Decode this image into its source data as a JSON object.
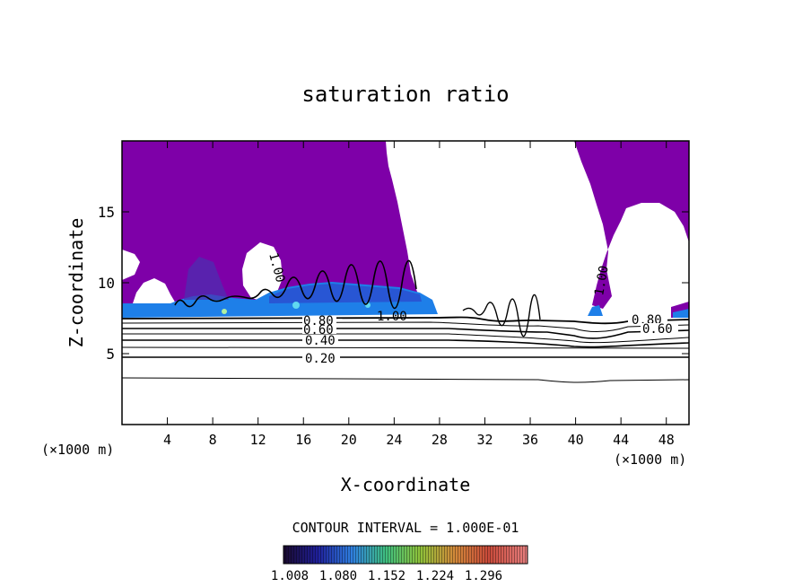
{
  "chart_data": {
    "type": "heatmap",
    "title": "saturation ratio",
    "xlabel": "X-coordinate",
    "ylabel": "Z-coordinate",
    "x_unit": "(×1000 m)",
    "x_unit_right": "(×1000 m)",
    "xlim": [
      0,
      50
    ],
    "ylim": [
      0,
      20
    ],
    "x_ticks": [
      4,
      8,
      12,
      16,
      20,
      24,
      28,
      32,
      36,
      40,
      44,
      48
    ],
    "y_ticks": [
      5,
      10,
      15
    ],
    "grid": false,
    "contour_interval_text": "CONTOUR INTERVAL = 1.000E-01",
    "colorbar": {
      "labels": [
        "1.008",
        "1.080",
        "1.152",
        "1.224",
        "1.296"
      ],
      "colors": [
        "#1a0a2e",
        "#1f1f9a",
        "#2f7fe0",
        "#3fbf7f",
        "#8fc23a",
        "#d28a3a",
        "#c94a3a",
        "#e88080"
      ]
    },
    "fill_colors": {
      "saturated_region": "#7e00a8",
      "boundary_layer": "#1e7fe8",
      "bright_spot": "#60d8f0"
    },
    "contour_labels": [
      {
        "text": "1.00",
        "x": 22.5,
        "z": 7.7
      },
      {
        "text": "1.00",
        "x": 13.8,
        "z": 11.3
      },
      {
        "text": "1.00",
        "x": 42.5,
        "z": 10.0
      },
      {
        "text": "0.80",
        "x": 17.6,
        "z": 7.2
      },
      {
        "text": "0.60",
        "x": 17.6,
        "z": 6.6
      },
      {
        "text": "0.40",
        "x": 17.6,
        "z": 5.9
      },
      {
        "text": "0.20",
        "x": 17.6,
        "z": 4.6
      },
      {
        "text": "0.80",
        "x": 46.1,
        "z": 7.3
      },
      {
        "text": "0.60",
        "x": 47.0,
        "z": 6.5
      }
    ],
    "contour_levels": [
      0.2,
      0.4,
      0.6,
      0.8,
      1.0
    ]
  }
}
